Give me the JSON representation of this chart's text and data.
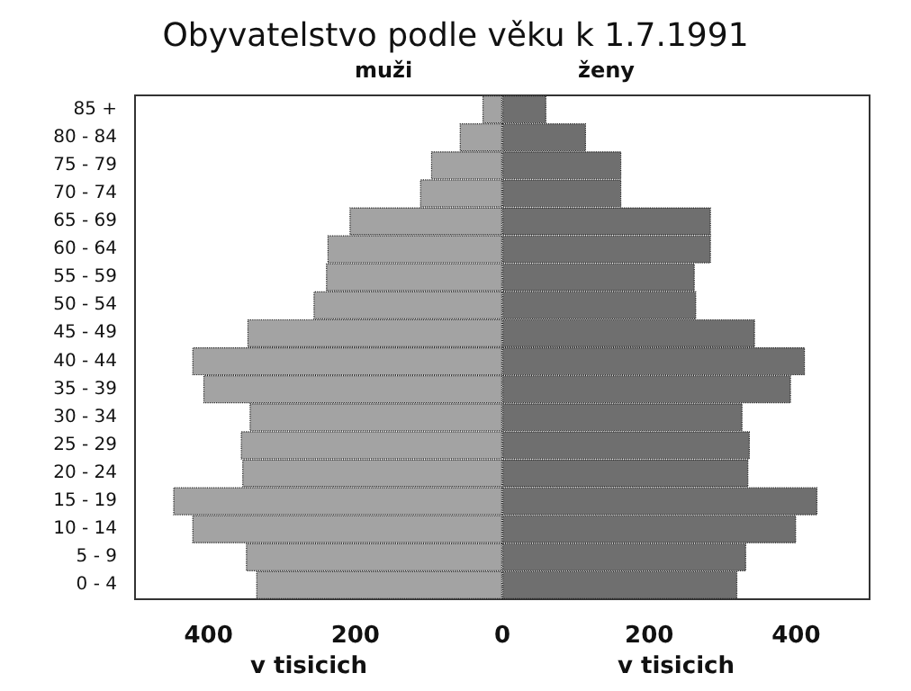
{
  "chart_data": {
    "type": "bar",
    "orientation": "horizontal",
    "stacked": true,
    "title": "Obyvatelstvo podle věku k 1.7.1991",
    "xlabel": "v tisicich",
    "categories": [
      "85 +",
      "80 - 84",
      "75 - 79",
      "70 - 74",
      "65 - 69",
      "60 - 64",
      "55 - 59",
      "50 - 54",
      "45 - 49",
      "40 - 44",
      "35 - 39",
      "30 - 34",
      "25 - 29",
      "20 - 24",
      "15 - 19",
      "10 - 14",
      "5 - 9",
      "0 - 4"
    ],
    "series": [
      {
        "name": "muži",
        "color": "#a3a3a3",
        "values": [
          -27,
          -58,
          -97,
          -112,
          -208,
          -238,
          -240,
          -257,
          -347,
          -422,
          -407,
          -344,
          -356,
          -354,
          -448,
          -422,
          -349,
          -335
        ]
      },
      {
        "name": "ženy",
        "color": "#6f6f6f",
        "values": [
          60,
          114,
          162,
          162,
          284,
          284,
          262,
          264,
          344,
          412,
          393,
          327,
          337,
          335,
          429,
          400,
          332,
          320
        ]
      }
    ],
    "xlim": [
      -500,
      500
    ],
    "xticks": [
      {
        "value": -400,
        "label": "400"
      },
      {
        "value": -200,
        "label": "200"
      },
      0,
      200,
      400
    ],
    "grid": false,
    "legend": false
  }
}
